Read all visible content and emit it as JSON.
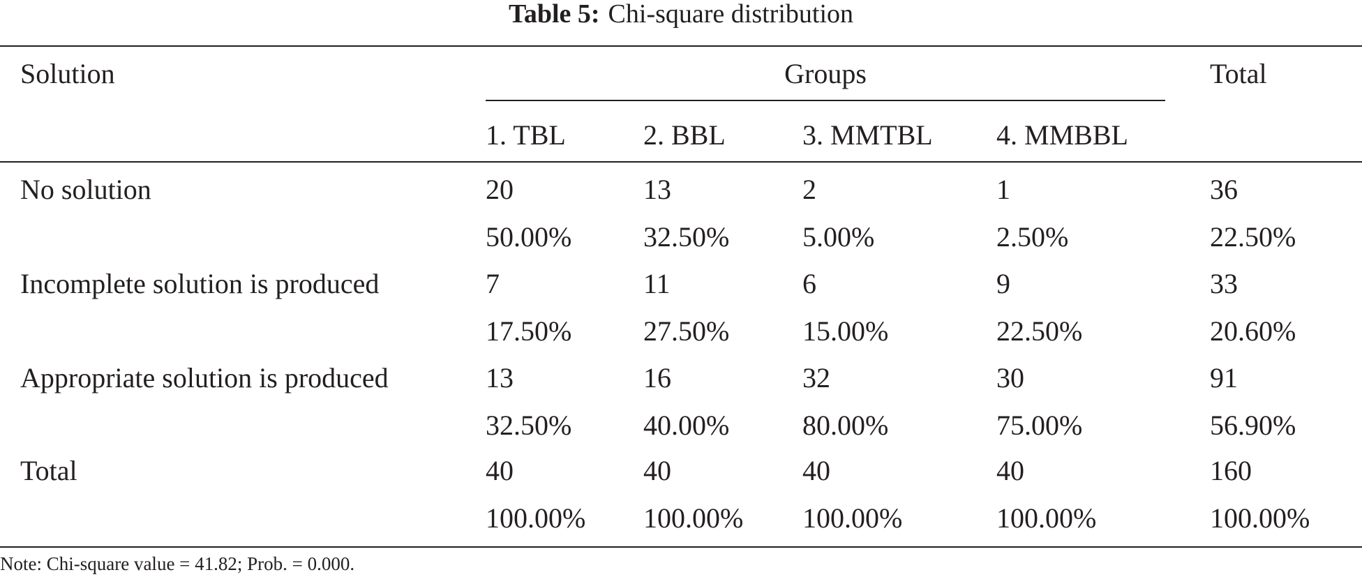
{
  "caption": {
    "label": "Table 5:",
    "title": "Chi-square distribution"
  },
  "header": {
    "solution": "Solution",
    "groups": "Groups",
    "total": "Total",
    "group_columns": [
      "1. TBL",
      "2. BBL",
      "3. MMTBL",
      "4. MMBBL"
    ]
  },
  "rows": [
    {
      "label": "No solution",
      "counts": [
        "20",
        "13",
        "2",
        "1",
        "36"
      ],
      "percents": [
        "50.00%",
        "32.50%",
        "5.00%",
        "2.50%",
        "22.50%"
      ]
    },
    {
      "label": "Incomplete solution is produced",
      "counts": [
        "7",
        "11",
        "6",
        "9",
        "33"
      ],
      "percents": [
        "17.50%",
        "27.50%",
        "15.00%",
        "22.50%",
        "20.60%"
      ]
    },
    {
      "label": "Appropriate solution is produced",
      "counts": [
        "13",
        "16",
        "32",
        "30",
        "91"
      ],
      "percents": [
        "32.50%",
        "40.00%",
        "80.00%",
        "75.00%",
        "56.90%"
      ]
    },
    {
      "label": "Total",
      "counts": [
        "40",
        "40",
        "40",
        "40",
        "160"
      ],
      "percents": [
        "100.00%",
        "100.00%",
        "100.00%",
        "100.00%",
        "100.00%"
      ]
    }
  ],
  "note": "Note: Chi-square value = 41.82; Prob. = 0.000."
}
